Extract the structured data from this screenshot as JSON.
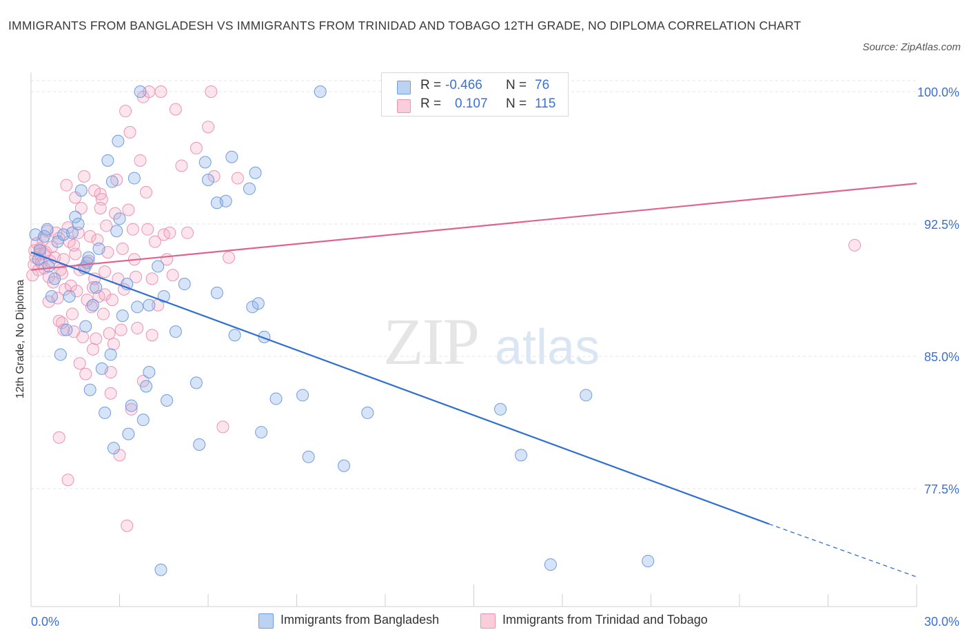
{
  "title": "IMMIGRANTS FROM BANGLADESH VS IMMIGRANTS FROM TRINIDAD AND TOBAGO 12TH GRADE, NO DIPLOMA CORRELATION CHART",
  "source": "Source: ZipAtlas.com",
  "watermark": {
    "zip": "ZIP",
    "atlas": "atlas"
  },
  "legend": {
    "rows": [
      {
        "r_label": "R =",
        "r_value": "-0.466",
        "n_label": "N =",
        "n_value": "76",
        "color": "#a9c4ef",
        "border": "#5b8ee0"
      },
      {
        "r_label": "R =",
        "r_value": "0.107",
        "n_label": "N =",
        "n_value": "115",
        "color": "#f6b9cc",
        "border": "#e883a4"
      }
    ]
  },
  "bottom_legend": [
    "Immigrants from Bangladesh",
    "Immigrants from Trinidad and Tobago"
  ],
  "colors": {
    "blue_fill": "rgba(140,175,230,0.35)",
    "blue_stroke": "#6e9ce0",
    "blue_line": "#2f6fd1",
    "pink_fill": "rgba(246,170,195,0.30)",
    "pink_stroke": "#eb94b2",
    "pink_line": "#e0628f",
    "tick_text": "#3a6fd8",
    "grid": "#e3e3e3"
  },
  "chart_data": {
    "type": "scatter",
    "title": "IMMIGRANTS FROM BANGLADESH VS IMMIGRANTS FROM TRINIDAD AND TOBAGO 12TH GRADE, NO DIPLOMA CORRELATION CHART",
    "xlabel": "",
    "ylabel": "12th Grade, No Diploma",
    "xlim": [
      0,
      30
    ],
    "ylim": [
      70.5,
      101
    ],
    "x_tick_labels": [
      "0.0%",
      "30.0%"
    ],
    "y_ticks": [
      77.5,
      85.0,
      92.5,
      100.0
    ],
    "y_tick_labels": [
      "77.5%",
      "85.0%",
      "92.5%",
      "100.0%"
    ],
    "grid": true,
    "series": [
      {
        "name": "Immigrants from Bangladesh",
        "color": "blue",
        "trend": {
          "x": [
            0,
            25
          ],
          "y": [
            90.9,
            75.5
          ],
          "dashed_to": [
            30,
            72.5
          ]
        },
        "points": [
          [
            0.15,
            91.9
          ],
          [
            0.25,
            90.5
          ],
          [
            0.3,
            91.0
          ],
          [
            0.45,
            91.8
          ],
          [
            0.55,
            92.2
          ],
          [
            0.6,
            90.1
          ],
          [
            0.7,
            88.4
          ],
          [
            0.8,
            89.4
          ],
          [
            0.9,
            91.5
          ],
          [
            1.0,
            85.1
          ],
          [
            1.1,
            91.9
          ],
          [
            1.2,
            86.5
          ],
          [
            1.3,
            88.4
          ],
          [
            1.4,
            92.0
          ],
          [
            1.5,
            92.9
          ],
          [
            1.6,
            92.5
          ],
          [
            1.7,
            94.4
          ],
          [
            1.8,
            90.0
          ],
          [
            1.85,
            86.7
          ],
          [
            1.9,
            90.3
          ],
          [
            1.95,
            90.6
          ],
          [
            2.0,
            83.1
          ],
          [
            2.1,
            87.9
          ],
          [
            2.2,
            88.9
          ],
          [
            2.3,
            91.1
          ],
          [
            2.4,
            84.3
          ],
          [
            2.5,
            81.8
          ],
          [
            2.6,
            96.1
          ],
          [
            2.7,
            85.1
          ],
          [
            2.75,
            94.9
          ],
          [
            2.8,
            79.8
          ],
          [
            2.9,
            92.1
          ],
          [
            2.95,
            97.2
          ],
          [
            3.0,
            92.8
          ],
          [
            3.1,
            87.3
          ],
          [
            3.3,
            80.6
          ],
          [
            3.25,
            89.1
          ],
          [
            3.4,
            82.2
          ],
          [
            3.5,
            95.1
          ],
          [
            3.6,
            87.8
          ],
          [
            3.7,
            100.0
          ],
          [
            3.8,
            81.4
          ],
          [
            3.9,
            83.3
          ],
          [
            4.0,
            84.1
          ],
          [
            4.0,
            87.9
          ],
          [
            4.3,
            90.1
          ],
          [
            4.4,
            72.9
          ],
          [
            4.5,
            88.4
          ],
          [
            4.6,
            82.5
          ],
          [
            4.9,
            86.4
          ],
          [
            5.2,
            89.1
          ],
          [
            5.6,
            83.5
          ],
          [
            5.7,
            80.0
          ],
          [
            5.9,
            96.0
          ],
          [
            6.0,
            95.0
          ],
          [
            6.3,
            93.7
          ],
          [
            6.3,
            88.6
          ],
          [
            6.6,
            93.8
          ],
          [
            6.8,
            96.3
          ],
          [
            6.9,
            86.2
          ],
          [
            7.4,
            94.5
          ],
          [
            7.5,
            87.8
          ],
          [
            7.6,
            95.4
          ],
          [
            7.7,
            88.0
          ],
          [
            7.8,
            80.7
          ],
          [
            7.9,
            86.1
          ],
          [
            8.3,
            82.6
          ],
          [
            9.2,
            82.8
          ],
          [
            9.4,
            79.3
          ],
          [
            9.8,
            100.0
          ],
          [
            10.6,
            78.8
          ],
          [
            11.4,
            81.8
          ],
          [
            15.9,
            82.0
          ],
          [
            16.6,
            79.4
          ],
          [
            17.6,
            73.2
          ],
          [
            18.8,
            82.8
          ],
          [
            20.9,
            73.4
          ]
        ]
      },
      {
        "name": "Immigrants from Trinidad and Tobago",
        "color": "pink",
        "trend": {
          "x": [
            0,
            30
          ],
          "y": [
            89.9,
            94.8
          ]
        },
        "points": [
          [
            0.05,
            89.6
          ],
          [
            0.1,
            90.2
          ],
          [
            0.12,
            91.0
          ],
          [
            0.15,
            90.6
          ],
          [
            0.2,
            91.4
          ],
          [
            0.25,
            89.9
          ],
          [
            0.3,
            90.8
          ],
          [
            0.35,
            90.3
          ],
          [
            0.4,
            91.6
          ],
          [
            0.45,
            90.0
          ],
          [
            0.5,
            90.9
          ],
          [
            0.55,
            92.1
          ],
          [
            0.6,
            89.5
          ],
          [
            0.65,
            90.4
          ],
          [
            0.7,
            91.2
          ],
          [
            0.75,
            89.2
          ],
          [
            0.8,
            90.6
          ],
          [
            0.85,
            92.0
          ],
          [
            0.9,
            88.3
          ],
          [
            0.95,
            87.0
          ],
          [
            0.95,
            91.7
          ],
          [
            1.0,
            89.9
          ],
          [
            1.05,
            86.9
          ],
          [
            1.1,
            86.5
          ],
          [
            1.1,
            90.5
          ],
          [
            1.15,
            88.8
          ],
          [
            1.2,
            94.7
          ],
          [
            1.25,
            92.3
          ],
          [
            1.3,
            91.5
          ],
          [
            1.35,
            89.0
          ],
          [
            1.4,
            87.4
          ],
          [
            1.45,
            86.4
          ],
          [
            1.5,
            94.0
          ],
          [
            1.5,
            90.8
          ],
          [
            1.55,
            88.7
          ],
          [
            1.6,
            92.0
          ],
          [
            1.65,
            89.9
          ],
          [
            1.7,
            93.4
          ],
          [
            1.75,
            86.1
          ],
          [
            1.8,
            95.2
          ],
          [
            1.85,
            84.0
          ],
          [
            1.9,
            88.2
          ],
          [
            1.95,
            90.4
          ],
          [
            2.0,
            91.8
          ],
          [
            2.05,
            87.8
          ],
          [
            2.1,
            85.4
          ],
          [
            2.15,
            89.4
          ],
          [
            2.2,
            86.0
          ],
          [
            2.25,
            91.6
          ],
          [
            2.3,
            88.4
          ],
          [
            2.35,
            94.2
          ],
          [
            2.4,
            93.9
          ],
          [
            2.45,
            87.4
          ],
          [
            2.5,
            88.5
          ],
          [
            2.5,
            89.8
          ],
          [
            2.55,
            92.4
          ],
          [
            2.6,
            90.9
          ],
          [
            2.65,
            86.3
          ],
          [
            2.7,
            84.1
          ],
          [
            2.75,
            88.2
          ],
          [
            2.8,
            85.7
          ],
          [
            2.85,
            93.1
          ],
          [
            2.9,
            95.0
          ],
          [
            2.95,
            89.4
          ],
          [
            3.0,
            79.4
          ],
          [
            3.05,
            86.5
          ],
          [
            3.1,
            91.1
          ],
          [
            3.15,
            88.8
          ],
          [
            3.2,
            98.9
          ],
          [
            3.25,
            75.4
          ],
          [
            3.3,
            93.3
          ],
          [
            3.35,
            97.7
          ],
          [
            3.4,
            82.0
          ],
          [
            3.45,
            92.2
          ],
          [
            3.5,
            90.5
          ],
          [
            3.6,
            86.6
          ],
          [
            3.7,
            96.1
          ],
          [
            3.8,
            99.7
          ],
          [
            3.9,
            94.3
          ],
          [
            3.95,
            92.2
          ],
          [
            4.0,
            100.0
          ],
          [
            4.1,
            89.4
          ],
          [
            4.2,
            91.5
          ],
          [
            4.3,
            87.9
          ],
          [
            4.4,
            100.0
          ],
          [
            4.5,
            91.9
          ],
          [
            4.6,
            90.5
          ],
          [
            4.7,
            92.0
          ],
          [
            4.8,
            89.6
          ],
          [
            4.9,
            99.0
          ],
          [
            5.1,
            95.8
          ],
          [
            5.3,
            92.0
          ],
          [
            5.6,
            96.8
          ],
          [
            6.0,
            98.0
          ],
          [
            6.1,
            100.0
          ],
          [
            6.2,
            95.2
          ],
          [
            6.5,
            81.0
          ],
          [
            6.7,
            90.6
          ],
          [
            7.0,
            95.1
          ],
          [
            0.95,
            80.4
          ],
          [
            1.25,
            78.0
          ],
          [
            2.15,
            94.4
          ],
          [
            2.7,
            82.9
          ],
          [
            3.8,
            83.6
          ],
          [
            0.45,
            90.8
          ],
          [
            1.85,
            90.1
          ],
          [
            4.1,
            86.2
          ],
          [
            27.9,
            91.3
          ],
          [
            0.3,
            91.1
          ],
          [
            0.6,
            88.1
          ],
          [
            1.45,
            91.3
          ],
          [
            2.1,
            88.9
          ],
          [
            1.65,
            84.6
          ],
          [
            3.55,
            89.5
          ],
          [
            2.35,
            93.4
          ],
          [
            1.05,
            89.7
          ]
        ]
      }
    ]
  }
}
